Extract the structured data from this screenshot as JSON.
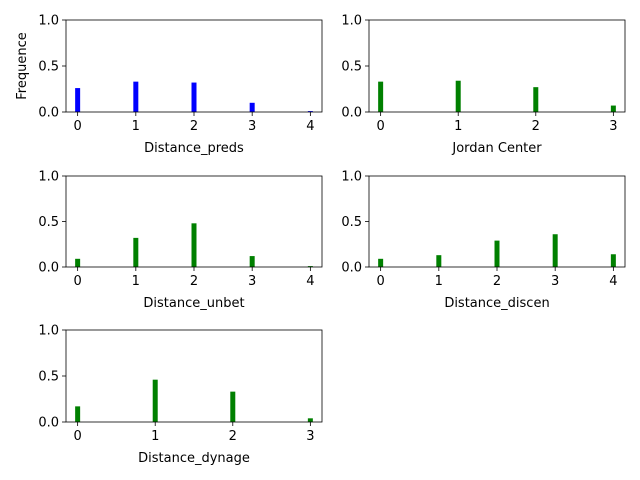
{
  "chart_data": [
    {
      "type": "bar",
      "xlabel": "Distance_preds",
      "ylabel": "Frequence",
      "ylim": [
        0,
        1.0
      ],
      "yticks": [
        "0.0",
        "0.5",
        "1.0"
      ],
      "x": [
        0,
        1,
        2,
        3,
        4
      ],
      "xticks": [
        "0",
        "1",
        "2",
        "3",
        "4"
      ],
      "xlim": [
        -0.2,
        4.2
      ],
      "values": [
        0.26,
        0.33,
        0.32,
        0.1,
        0.01
      ],
      "color": "#0000ff",
      "grid": false
    },
    {
      "type": "bar",
      "xlabel": "Jordan Center",
      "ylabel": "",
      "ylim": [
        0,
        1.0
      ],
      "yticks": [
        "0.0",
        "0.5",
        "1.0"
      ],
      "x": [
        0,
        1,
        2,
        3
      ],
      "xticks": [
        "0",
        "1",
        "2",
        "3"
      ],
      "xlim": [
        -0.15,
        3.15
      ],
      "values": [
        0.33,
        0.34,
        0.27,
        0.07
      ],
      "color": "#008000",
      "grid": false
    },
    {
      "type": "bar",
      "xlabel": "Distance_unbet",
      "ylabel": "",
      "ylim": [
        0,
        1.0
      ],
      "yticks": [
        "0.0",
        "0.5",
        "1.0"
      ],
      "x": [
        0,
        1,
        2,
        3,
        4
      ],
      "xticks": [
        "0",
        "1",
        "2",
        "3",
        "4"
      ],
      "xlim": [
        -0.2,
        4.2
      ],
      "values": [
        0.09,
        0.32,
        0.48,
        0.12,
        0.01
      ],
      "color": "#008000",
      "grid": false
    },
    {
      "type": "bar",
      "xlabel": "Distance_discen",
      "ylabel": "",
      "ylim": [
        0,
        1.0
      ],
      "yticks": [
        "0.0",
        "0.5",
        "1.0"
      ],
      "x": [
        0,
        1,
        2,
        3,
        4
      ],
      "xticks": [
        "0",
        "1",
        "2",
        "3",
        "4"
      ],
      "xlim": [
        -0.2,
        4.2
      ],
      "values": [
        0.09,
        0.13,
        0.29,
        0.36,
        0.14
      ],
      "color": "#008000",
      "grid": false
    },
    {
      "type": "bar",
      "xlabel": "Distance_dynage",
      "ylabel": "",
      "ylim": [
        0,
        1.0
      ],
      "yticks": [
        "0.0",
        "0.5",
        "1.0"
      ],
      "x": [
        0,
        1,
        2,
        3
      ],
      "xticks": [
        "0",
        "1",
        "2",
        "3"
      ],
      "xlim": [
        -0.15,
        3.15
      ],
      "values": [
        0.17,
        0.46,
        0.33,
        0.04
      ],
      "color": "#008000",
      "grid": false
    }
  ]
}
